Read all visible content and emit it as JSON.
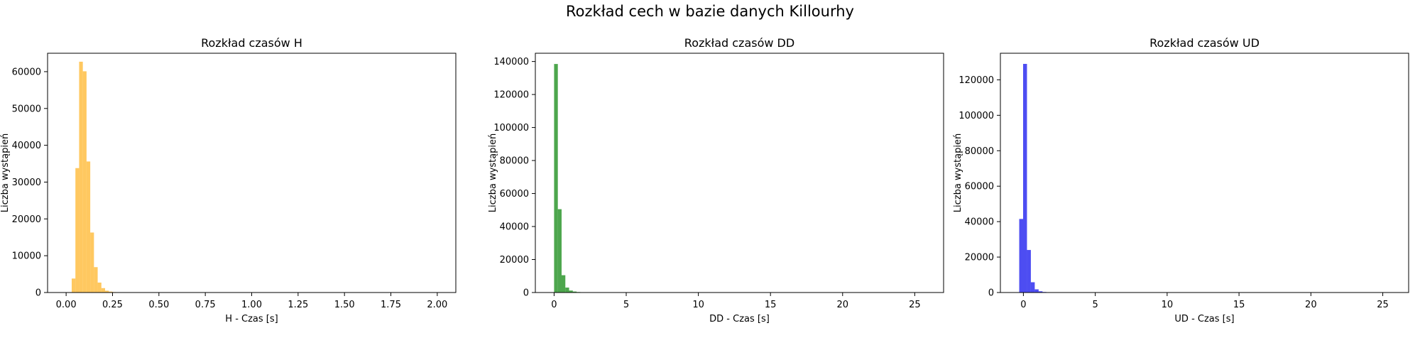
{
  "figure": {
    "title": "Rozkład cech w bazie danych Killourhy"
  },
  "chart_data": [
    {
      "type": "bar",
      "title": "Rozkład czasów H",
      "xlabel": "H - Czas [s]",
      "ylabel": "Liczba wystąpień",
      "color": "#FFB52B",
      "opacity": 0.75,
      "xlim": [
        -0.1,
        2.1
      ],
      "ylim": [
        0,
        65000
      ],
      "xticks": [
        0.0,
        0.25,
        0.5,
        0.75,
        1.0,
        1.25,
        1.5,
        1.75,
        2.0
      ],
      "xtick_labels": [
        "0.00",
        "0.25",
        "0.50",
        "0.75",
        "1.00",
        "1.25",
        "1.50",
        "1.75",
        "2.00"
      ],
      "yticks": [
        0,
        10000,
        20000,
        30000,
        40000,
        50000,
        60000
      ],
      "ytick_labels": [
        "0",
        "10000",
        "20000",
        "30000",
        "40000",
        "50000",
        "60000"
      ],
      "bin_width": 0.02,
      "bins": [
        {
          "x0": 0.01,
          "x1": 0.03,
          "value": 100
        },
        {
          "x0": 0.03,
          "x1": 0.05,
          "value": 3800
        },
        {
          "x0": 0.05,
          "x1": 0.07,
          "value": 33800
        },
        {
          "x0": 0.07,
          "x1": 0.09,
          "value": 62700
        },
        {
          "x0": 0.09,
          "x1": 0.11,
          "value": 60100
        },
        {
          "x0": 0.11,
          "x1": 0.13,
          "value": 35600
        },
        {
          "x0": 0.13,
          "x1": 0.15,
          "value": 16300
        },
        {
          "x0": 0.15,
          "x1": 0.17,
          "value": 6900
        },
        {
          "x0": 0.17,
          "x1": 0.19,
          "value": 2700
        },
        {
          "x0": 0.19,
          "x1": 0.21,
          "value": 1200
        },
        {
          "x0": 0.21,
          "x1": 0.23,
          "value": 500
        },
        {
          "x0": 0.23,
          "x1": 0.25,
          "value": 250
        },
        {
          "x0": 0.25,
          "x1": 0.27,
          "value": 120
        },
        {
          "x0": 0.27,
          "x1": 0.29,
          "value": 60
        }
      ]
    },
    {
      "type": "bar",
      "title": "Rozkład czasów DD",
      "xlabel": "DD - Czas [s]",
      "ylabel": "Liczba wystąpień",
      "color": "#118811",
      "opacity": 0.75,
      "xlim": [
        -1.3,
        27.0
      ],
      "ylim": [
        0,
        145000
      ],
      "xticks": [
        0,
        5,
        10,
        15,
        20,
        25
      ],
      "xtick_labels": [
        "0",
        "5",
        "10",
        "15",
        "20",
        "25"
      ],
      "yticks": [
        0,
        20000,
        40000,
        60000,
        80000,
        100000,
        120000,
        140000
      ],
      "ytick_labels": [
        "0",
        "20000",
        "40000",
        "60000",
        "80000",
        "100000",
        "120000",
        "140000"
      ],
      "bin_width": 0.26,
      "bins": [
        {
          "x0": 0.0,
          "x1": 0.26,
          "value": 138500
        },
        {
          "x0": 0.26,
          "x1": 0.52,
          "value": 50500
        },
        {
          "x0": 0.52,
          "x1": 0.78,
          "value": 10500
        },
        {
          "x0": 0.78,
          "x1": 1.04,
          "value": 3000
        },
        {
          "x0": 1.04,
          "x1": 1.3,
          "value": 1200
        },
        {
          "x0": 1.3,
          "x1": 1.56,
          "value": 600
        },
        {
          "x0": 1.56,
          "x1": 1.82,
          "value": 300
        },
        {
          "x0": 1.82,
          "x1": 2.08,
          "value": 150
        },
        {
          "x0": 2.08,
          "x1": 2.34,
          "value": 80
        }
      ]
    },
    {
      "type": "bar",
      "title": "Rozkład czasów UD",
      "xlabel": "UD - Czas [s]",
      "ylabel": "Liczba wystąpień",
      "color": "#1111EE",
      "opacity": 0.75,
      "xlim": [
        -1.6,
        26.8
      ],
      "ylim": [
        0,
        135000
      ],
      "xticks": [
        0,
        5,
        10,
        15,
        20,
        25
      ],
      "xtick_labels": [
        "0",
        "5",
        "10",
        "15",
        "20",
        "25"
      ],
      "yticks": [
        0,
        20000,
        40000,
        60000,
        80000,
        100000,
        120000
      ],
      "ytick_labels": [
        "0",
        "20000",
        "40000",
        "60000",
        "80000",
        "100000",
        "120000"
      ],
      "bin_width": 0.27,
      "bins": [
        {
          "x0": -0.29,
          "x1": -0.02,
          "value": 41500
        },
        {
          "x0": -0.02,
          "x1": 0.25,
          "value": 129000
        },
        {
          "x0": 0.25,
          "x1": 0.52,
          "value": 24000
        },
        {
          "x0": 0.52,
          "x1": 0.79,
          "value": 5800
        },
        {
          "x0": 0.79,
          "x1": 1.06,
          "value": 1800
        },
        {
          "x0": 1.06,
          "x1": 1.33,
          "value": 700
        },
        {
          "x0": 1.33,
          "x1": 1.6,
          "value": 300
        },
        {
          "x0": 1.6,
          "x1": 1.87,
          "value": 150
        }
      ]
    }
  ]
}
